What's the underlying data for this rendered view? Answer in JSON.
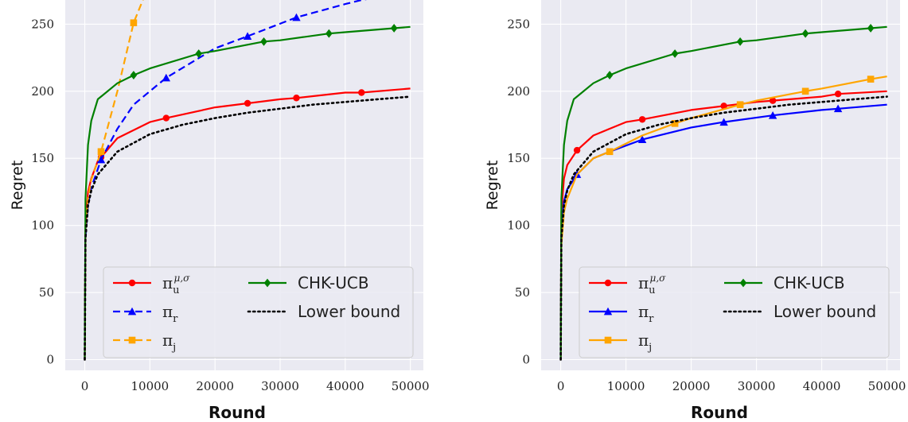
{
  "chart_data": [
    {
      "type": "line",
      "xlabel": "Round",
      "ylabel": "Regret",
      "xlim": [
        -3000,
        52000
      ],
      "ylim": [
        -8,
        268
      ],
      "xticks": [
        0,
        10000,
        20000,
        30000,
        40000,
        50000
      ],
      "yticks": [
        0,
        50,
        100,
        150,
        200,
        250
      ],
      "grid": true,
      "legend_position": "lower-right",
      "series": [
        {
          "key": "pi_u",
          "label_base": "π",
          "label_sub": "u",
          "label_sup": "μ,σ",
          "color": "#ff0000",
          "style": "solid",
          "marker": "circle",
          "x": [
            0,
            100,
            500,
            1000,
            2000,
            5000,
            10000,
            12500,
            20000,
            25000,
            30000,
            32500,
            40000,
            42500,
            50000
          ],
          "y": [
            0,
            100,
            125,
            135,
            148,
            165,
            177,
            180,
            188,
            191,
            194,
            195,
            199,
            199,
            202
          ],
          "marker_x": [
            2500,
            12500,
            25000,
            32500,
            42500
          ]
        },
        {
          "key": "pi_r",
          "label_base": "π",
          "label_sub": "r",
          "color": "#0000ff",
          "style": "dashed",
          "marker": "triangle",
          "x": [
            0,
            100,
            500,
            1000,
            2500,
            5000,
            7500,
            12500,
            20000,
            25000,
            32500,
            40000,
            42500,
            45000
          ],
          "y": [
            0,
            90,
            115,
            128,
            149,
            172,
            190,
            210,
            232,
            241,
            255,
            265,
            268,
            270
          ],
          "marker_x": [
            2500,
            12500,
            25000,
            32500
          ]
        },
        {
          "key": "pi_j",
          "label_base": "π",
          "label_sub": "j",
          "color": "#ffa500",
          "style": "dashed",
          "marker": "square",
          "x": [
            0,
            100,
            500,
            1000,
            2500,
            5000,
            7500,
            9500
          ],
          "y": [
            0,
            95,
            120,
            134,
            155,
            200,
            251,
            275
          ],
          "marker_x": [
            2500,
            7500
          ]
        },
        {
          "key": "chk",
          "label": "CHK-UCB",
          "color": "#008000",
          "style": "solid",
          "marker": "diamond",
          "x": [
            0,
            100,
            500,
            1000,
            2000,
            5000,
            7500,
            10000,
            17500,
            20000,
            27500,
            30000,
            37500,
            40000,
            47500,
            50000
          ],
          "y": [
            0,
            120,
            160,
            178,
            194,
            206,
            212,
            217,
            228,
            230,
            237,
            238,
            243,
            244,
            247,
            248
          ],
          "marker_x": [
            7500,
            17500,
            27500,
            37500,
            47500
          ]
        },
        {
          "key": "lb",
          "label": "Lower bound",
          "color": "#000000",
          "style": "dotted",
          "marker": "none",
          "x": [
            0,
            100,
            500,
            1000,
            2000,
            5000,
            10000,
            15000,
            20000,
            25000,
            30000,
            35000,
            40000,
            45000,
            50000
          ],
          "y": [
            0,
            90,
            115,
            126,
            138,
            155,
            168,
            175,
            180,
            184,
            187,
            190,
            192,
            194,
            196
          ],
          "marker_x": []
        }
      ]
    },
    {
      "type": "line",
      "xlabel": "Round",
      "ylabel": "Regret",
      "xlim": [
        -3000,
        52000
      ],
      "ylim": [
        -8,
        268
      ],
      "xticks": [
        0,
        10000,
        20000,
        30000,
        40000,
        50000
      ],
      "yticks": [
        0,
        50,
        100,
        150,
        200,
        250
      ],
      "grid": true,
      "legend_position": "lower-right",
      "series": [
        {
          "key": "pi_u",
          "label_base": "π",
          "label_sub": "u",
          "label_sup": "μ,σ",
          "color": "#ff0000",
          "style": "solid",
          "marker": "circle",
          "x": [
            0,
            100,
            500,
            1000,
            2500,
            5000,
            10000,
            12500,
            20000,
            25000,
            30000,
            32500,
            40000,
            42500,
            50000
          ],
          "y": [
            0,
            110,
            135,
            145,
            156,
            167,
            177,
            179,
            186,
            189,
            192,
            193,
            196,
            198,
            200
          ],
          "marker_x": [
            2500,
            12500,
            25000,
            32500,
            42500
          ]
        },
        {
          "key": "pi_r",
          "label_base": "π",
          "label_sub": "r",
          "color": "#0000ff",
          "style": "solid",
          "marker": "triangle",
          "x": [
            0,
            100,
            500,
            1000,
            2500,
            5000,
            7500,
            12500,
            20000,
            25000,
            32500,
            40000,
            42500,
            50000
          ],
          "y": [
            0,
            95,
            118,
            127,
            138,
            150,
            155,
            164,
            173,
            177,
            182,
            186,
            187,
            190
          ],
          "marker_x": [
            2500,
            12500,
            25000,
            32500,
            42500
          ]
        },
        {
          "key": "pi_j",
          "label_base": "π",
          "label_sub": "j",
          "color": "#ffa500",
          "style": "solid",
          "marker": "square",
          "x": [
            0,
            100,
            500,
            1000,
            2500,
            5000,
            7500,
            12500,
            17500,
            20000,
            27500,
            30000,
            37500,
            40000,
            47500,
            50000
          ],
          "y": [
            0,
            85,
            110,
            120,
            138,
            150,
            155,
            167,
            176,
            180,
            190,
            193,
            200,
            202,
            209,
            211
          ],
          "marker_x": [
            7500,
            17500,
            27500,
            37500,
            47500
          ]
        },
        {
          "key": "chk",
          "label": "CHK-UCB",
          "color": "#008000",
          "style": "solid",
          "marker": "diamond",
          "x": [
            0,
            100,
            500,
            1000,
            2000,
            5000,
            7500,
            10000,
            17500,
            20000,
            27500,
            30000,
            37500,
            40000,
            47500,
            50000
          ],
          "y": [
            0,
            120,
            160,
            178,
            194,
            206,
            212,
            217,
            228,
            230,
            237,
            238,
            243,
            244,
            247,
            248
          ],
          "marker_x": [
            7500,
            17500,
            27500,
            37500,
            47500
          ]
        },
        {
          "key": "lb",
          "label": "Lower bound",
          "color": "#000000",
          "style": "dotted",
          "marker": "none",
          "x": [
            0,
            100,
            500,
            1000,
            2000,
            5000,
            10000,
            15000,
            20000,
            25000,
            30000,
            35000,
            40000,
            45000,
            50000
          ],
          "y": [
            0,
            90,
            115,
            126,
            138,
            155,
            168,
            175,
            180,
            184,
            187,
            190,
            192,
            194,
            196
          ],
          "marker_x": []
        }
      ]
    }
  ]
}
